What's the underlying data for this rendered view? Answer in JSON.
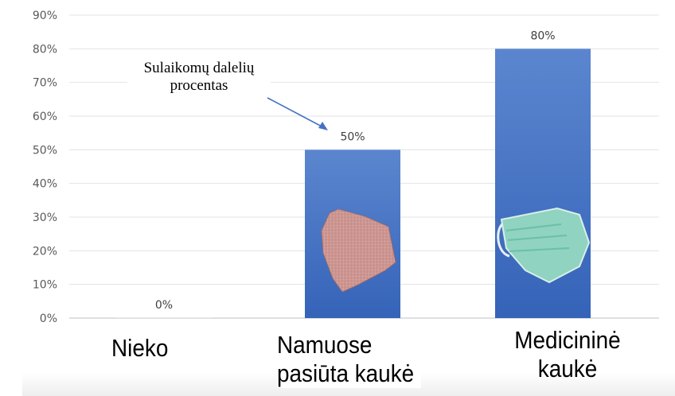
{
  "chart_data": {
    "type": "bar",
    "categories": [
      "Nieko",
      "Namuose pasiūta kaukė",
      "Medicininė kaukė"
    ],
    "category_lines": [
      [
        "Nieko"
      ],
      [
        "Namuose",
        "pasiūta kaukė"
      ],
      [
        "Medicininė",
        "kaukė"
      ]
    ],
    "values": [
      0,
      50,
      80
    ],
    "data_labels": [
      "0%",
      "50%",
      "80%"
    ],
    "ylim": [
      0,
      90
    ],
    "yticks": [
      "0%",
      "10%",
      "20%",
      "30%",
      "40%",
      "50%",
      "60%",
      "70%",
      "80%",
      "90%"
    ],
    "grid": true,
    "bar_color": "#4472C4",
    "annotation": "Sulaikomų dalelių procentas",
    "annotation_lines": [
      "Sulaikomų dalelių",
      "procentas"
    ],
    "bar_images": [
      "none",
      "cloth-mask-icon",
      "surgical-mask-icon"
    ]
  }
}
